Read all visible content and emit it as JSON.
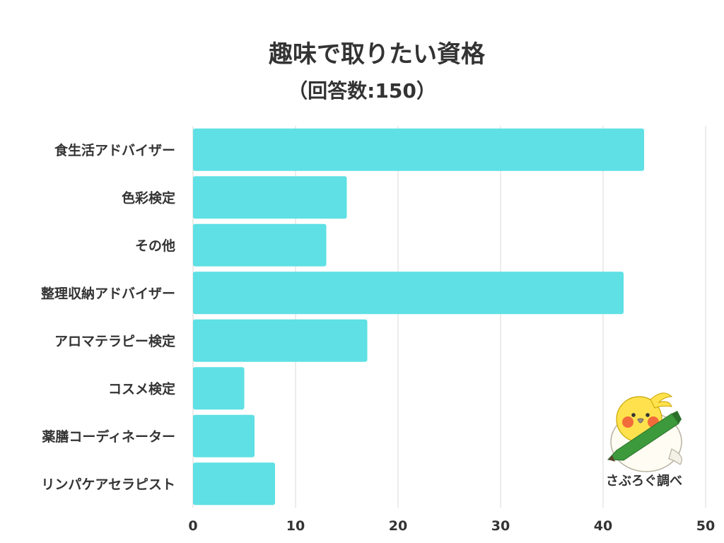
{
  "chart_data": {
    "type": "bar",
    "orientation": "horizontal",
    "title": "趣味で取りたい資格",
    "subtitle": "（回答数:150）",
    "categories": [
      "食生活アドバイザー",
      "色彩検定",
      "その他",
      "整理収納アドバイザー",
      "アロマテラピー検定",
      "コスメ検定",
      "薬膳コーディネーター",
      "リンパケアセラピスト"
    ],
    "values": [
      44,
      15,
      13,
      42,
      17,
      5,
      6,
      8
    ],
    "xlim": [
      0,
      50
    ],
    "xticks": [
      "0",
      "10",
      "20",
      "30",
      "40",
      "50"
    ],
    "grid": true,
    "bar_color": "#5ee0e4"
  },
  "credit": "さぶろぐ調べ",
  "mascot": "bird-mascot-icon"
}
